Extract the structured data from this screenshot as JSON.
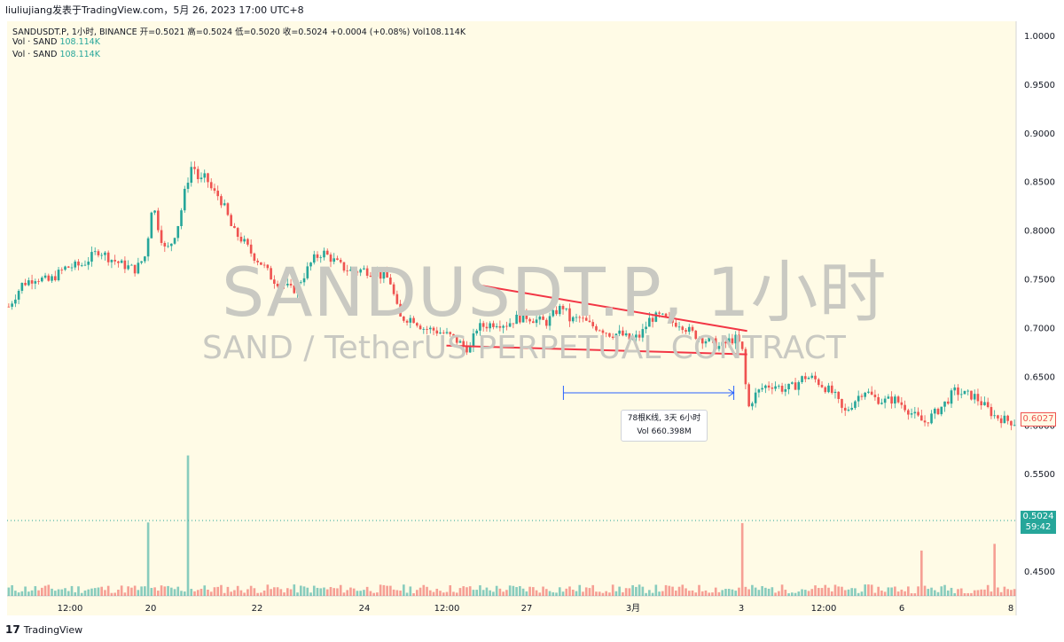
{
  "header": {
    "publisher": "liuliujiang发表于TradingView.com，5月 26, 2023 17:00 UTC+8"
  },
  "legend": {
    "ohlc_line": "SANDUSDT.P, 1小时, BINANCE  开=0.5021  高=0.5024  低=0.5020  收=0.5024  +0.0004 (+0.08%)  Vol108.114K",
    "vol_label_1": "Vol · SAND",
    "vol_value_1": "108.114K",
    "vol_label_2": "Vol · SAND",
    "vol_value_2": "108.114K"
  },
  "watermark": {
    "line1": "SANDUSDT.P, 1小时",
    "line2": "SAND / TetherUS PERPETUAL CONTRACT"
  },
  "price_tags": {
    "last": "0.6027",
    "current_price": "0.5024",
    "countdown": "59:42"
  },
  "measure": {
    "bars_text": "78根K线, 3天 6小时",
    "vol_text": "Vol 660.398M"
  },
  "footer": {
    "logo_text": "TradingView"
  },
  "colors": {
    "background": "#fffbe6",
    "up": "#26a69a",
    "down": "#ef5350",
    "trendline": "#f23645",
    "measure": "#2962ff"
  },
  "chart_data": {
    "type": "candlestick",
    "symbol": "SANDUSDT.P",
    "interval": "1小时",
    "exchange": "BINANCE",
    "y_ticks": [
      "1.0000",
      "0.9500",
      "0.9000",
      "0.8500",
      "0.8000",
      "0.7500",
      "0.7000",
      "0.6500",
      "0.6000",
      "0.5500",
      "0.5000",
      "0.4500"
    ],
    "ylim": [
      0.425,
      1.015
    ],
    "x_ticks": [
      "12:00",
      "20",
      "22",
      "24",
      "12:00",
      "27",
      "3月",
      "3",
      "12:00",
      "6",
      "8"
    ],
    "close_path_points": [
      [
        0,
        0.722
      ],
      [
        4,
        0.745
      ],
      [
        8,
        0.752
      ],
      [
        12,
        0.748
      ],
      [
        17,
        0.762
      ],
      [
        22,
        0.765
      ],
      [
        27,
        0.78
      ],
      [
        30,
        0.772
      ],
      [
        34,
        0.765
      ],
      [
        38,
        0.76
      ],
      [
        41,
        0.775
      ],
      [
        43,
        0.83
      ],
      [
        45,
        0.8
      ],
      [
        47,
        0.778
      ],
      [
        49,
        0.79
      ],
      [
        51,
        0.81
      ],
      [
        53,
        0.845
      ],
      [
        55,
        0.87
      ],
      [
        57,
        0.85
      ],
      [
        59,
        0.855
      ],
      [
        61,
        0.84
      ],
      [
        63,
        0.835
      ],
      [
        65,
        0.82
      ],
      [
        67,
        0.8
      ],
      [
        70,
        0.79
      ],
      [
        73,
        0.775
      ],
      [
        76,
        0.765
      ],
      [
        79,
        0.75
      ],
      [
        82,
        0.745
      ],
      [
        85,
        0.738
      ],
      [
        88,
        0.752
      ],
      [
        91,
        0.77
      ],
      [
        94,
        0.778
      ],
      [
        97,
        0.77
      ],
      [
        100,
        0.762
      ],
      [
        103,
        0.758
      ],
      [
        106,
        0.76
      ],
      [
        110,
        0.756
      ],
      [
        114,
        0.75
      ],
      [
        117,
        0.71
      ],
      [
        121,
        0.71
      ],
      [
        124,
        0.7
      ],
      [
        127,
        0.698
      ],
      [
        130,
        0.695
      ],
      [
        133,
        0.69
      ],
      [
        136,
        0.682
      ],
      [
        138,
        0.678
      ],
      [
        140,
        0.7
      ],
      [
        143,
        0.703
      ],
      [
        146,
        0.706
      ],
      [
        149,
        0.704
      ],
      [
        152,
        0.71
      ],
      [
        155,
        0.712
      ],
      [
        158,
        0.708
      ],
      [
        161,
        0.706
      ],
      [
        164,
        0.718
      ],
      [
        166,
        0.722
      ],
      [
        168,
        0.708
      ],
      [
        171,
        0.71
      ],
      [
        174,
        0.703
      ],
      [
        177,
        0.7
      ],
      [
        180,
        0.694
      ],
      [
        183,
        0.694
      ],
      [
        186,
        0.688
      ],
      [
        189,
        0.692
      ],
      [
        192,
        0.71
      ],
      [
        195,
        0.712
      ],
      [
        198,
        0.706
      ],
      [
        201,
        0.705
      ],
      [
        204,
        0.696
      ],
      [
        207,
        0.69
      ],
      [
        210,
        0.686
      ],
      [
        213,
        0.68
      ],
      [
        216,
        0.688
      ],
      [
        218,
        0.689
      ],
      [
        220,
        0.672
      ],
      [
        221,
        0.615
      ],
      [
        223,
        0.63
      ],
      [
        226,
        0.64
      ],
      [
        229,
        0.642
      ],
      [
        232,
        0.637
      ],
      [
        235,
        0.64
      ],
      [
        238,
        0.65
      ],
      [
        241,
        0.648
      ],
      [
        244,
        0.64
      ],
      [
        247,
        0.632
      ],
      [
        250,
        0.612
      ],
      [
        253,
        0.625
      ],
      [
        256,
        0.637
      ],
      [
        259,
        0.628
      ],
      [
        262,
        0.625
      ],
      [
        265,
        0.627
      ],
      [
        268,
        0.62
      ],
      [
        271,
        0.61
      ],
      [
        274,
        0.603
      ],
      [
        277,
        0.612
      ],
      [
        280,
        0.622
      ],
      [
        283,
        0.635
      ],
      [
        286,
        0.632
      ],
      [
        289,
        0.63
      ],
      [
        292,
        0.62
      ],
      [
        295,
        0.61
      ],
      [
        298,
        0.606
      ],
      [
        301,
        0.603
      ]
    ],
    "volume_spikes": [
      {
        "bar": 42,
        "volume": 230
      },
      {
        "bar": 54,
        "volume": 440
      },
      {
        "bar": 220,
        "volume": 228
      },
      {
        "bar": 295,
        "volume": 163
      },
      {
        "bar": 273,
        "volume": 142
      }
    ],
    "volume_units": "K (approx.)",
    "annotations": {
      "falling_trendline": {
        "from": [
          139,
          0.745
        ],
        "to": [
          221,
          0.697
        ]
      },
      "support_line": {
        "from": [
          131,
          0.682
        ],
        "to": [
          221,
          0.673
        ]
      },
      "measure_range": {
        "from_bar": 166,
        "to_bar": 217,
        "label": "78根K线, 3天 6小时 / Vol 660.398M"
      }
    },
    "current_price_line": 0.5024,
    "last_value_label": 0.6027
  }
}
